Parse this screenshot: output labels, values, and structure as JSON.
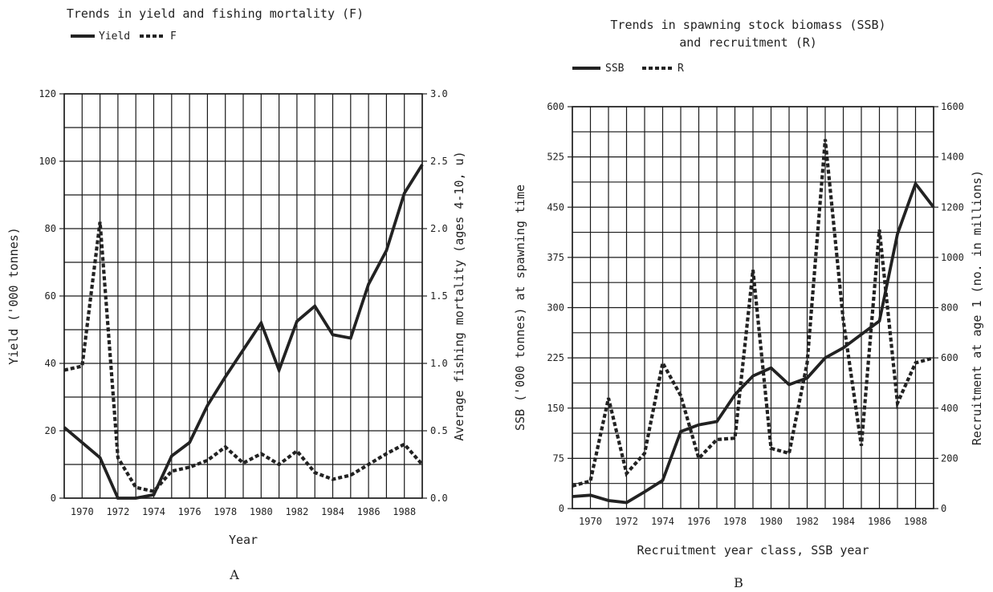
{
  "chart_data": [
    {
      "type": "line",
      "panel_label": "A",
      "title": "Trends in yield and fishing mortality (F)",
      "xlabel": "Year",
      "ylabel_left": "Yield ('000 tonnes)",
      "ylabel_right": "Average fishing mortality (ages 4-10, u)",
      "legend": [
        "Yield",
        "F"
      ],
      "legend_position": "top-left",
      "grid": true,
      "x": [
        1969,
        1970,
        1971,
        1972,
        1973,
        1974,
        1975,
        1976,
        1977,
        1978,
        1979,
        1980,
        1981,
        1982,
        1983,
        1984,
        1985,
        1986,
        1987,
        1988,
        1989
      ],
      "x_tick_labels": [
        "1970",
        "1972",
        "1974",
        "1976",
        "1978",
        "1980",
        "1982",
        "1984",
        "1986",
        "1988"
      ],
      "xlim": [
        1969,
        1989
      ],
      "ylim_left": [
        0,
        120
      ],
      "ylim_right": [
        0.0,
        3.0
      ],
      "y_ticks_left": [
        "0",
        "20",
        "40",
        "60",
        "80",
        "100",
        "120"
      ],
      "y_ticks_right": [
        "0.0",
        "0.5",
        "1.0",
        "1.5",
        "2.0",
        "2.5",
        "3.0"
      ],
      "series": [
        {
          "name": "Yield",
          "axis": "left",
          "style": "solid",
          "color": "#222222",
          "values": [
            21,
            16.5,
            12,
            0,
            0,
            1,
            12.5,
            16.5,
            27.5,
            36,
            44,
            52,
            38,
            52.5,
            57,
            48.5,
            47.5,
            63.5,
            73.5,
            90.5,
            99
          ]
        },
        {
          "name": "F",
          "axis": "right",
          "style": "dotted",
          "color": "#222222",
          "values": [
            0.95,
            0.98,
            2.05,
            0.3,
            0.08,
            0.05,
            0.2,
            0.23,
            0.28,
            0.38,
            0.26,
            0.33,
            0.25,
            0.35,
            0.19,
            0.14,
            0.17,
            0.25,
            0.33,
            0.4,
            0.25
          ]
        }
      ]
    },
    {
      "type": "line",
      "panel_label": "B",
      "title": "Trends in spawning stock biomass (SSB)",
      "title_line2": "and recruitment (R)",
      "xlabel": "Recruitment year class, SSB year",
      "ylabel_left": "SSB ('000 tonnes) at spawning time",
      "ylabel_right": "Recruitment at age 1 (no. in millions)",
      "legend": [
        "SSB",
        "R"
      ],
      "legend_position": "top-left",
      "grid": true,
      "x": [
        1969,
        1970,
        1971,
        1972,
        1973,
        1974,
        1975,
        1976,
        1977,
        1978,
        1979,
        1980,
        1981,
        1982,
        1983,
        1984,
        1985,
        1986,
        1987,
        1988,
        1989
      ],
      "x_tick_labels": [
        "1970",
        "1972",
        "1974",
        "1976",
        "1978",
        "1980",
        "1982",
        "1984",
        "1986",
        "1988"
      ],
      "xlim": [
        1969,
        1989
      ],
      "ylim_left": [
        0,
        600
      ],
      "ylim_right": [
        0,
        1600
      ],
      "y_ticks_left": [
        "0",
        "75",
        "150",
        "225",
        "300",
        "375",
        "450",
        "525",
        "600"
      ],
      "y_ticks_right": [
        "0",
        "200",
        "400",
        "600",
        "800",
        "1000",
        "1200",
        "1400",
        "1600"
      ],
      "series": [
        {
          "name": "SSB",
          "axis": "left",
          "style": "solid",
          "color": "#222222",
          "values": [
            18,
            20,
            12,
            9,
            25,
            42,
            115,
            125,
            130,
            170,
            198,
            210,
            185,
            195,
            225,
            240,
            260,
            280,
            410,
            485,
            450
          ]
        },
        {
          "name": "R",
          "axis": "right",
          "style": "dotted",
          "color": "#222222",
          "values": [
            90,
            110,
            440,
            140,
            220,
            580,
            450,
            200,
            275,
            280,
            950,
            240,
            220,
            580,
            1470,
            750,
            250,
            1110,
            420,
            580,
            600
          ]
        }
      ]
    }
  ]
}
